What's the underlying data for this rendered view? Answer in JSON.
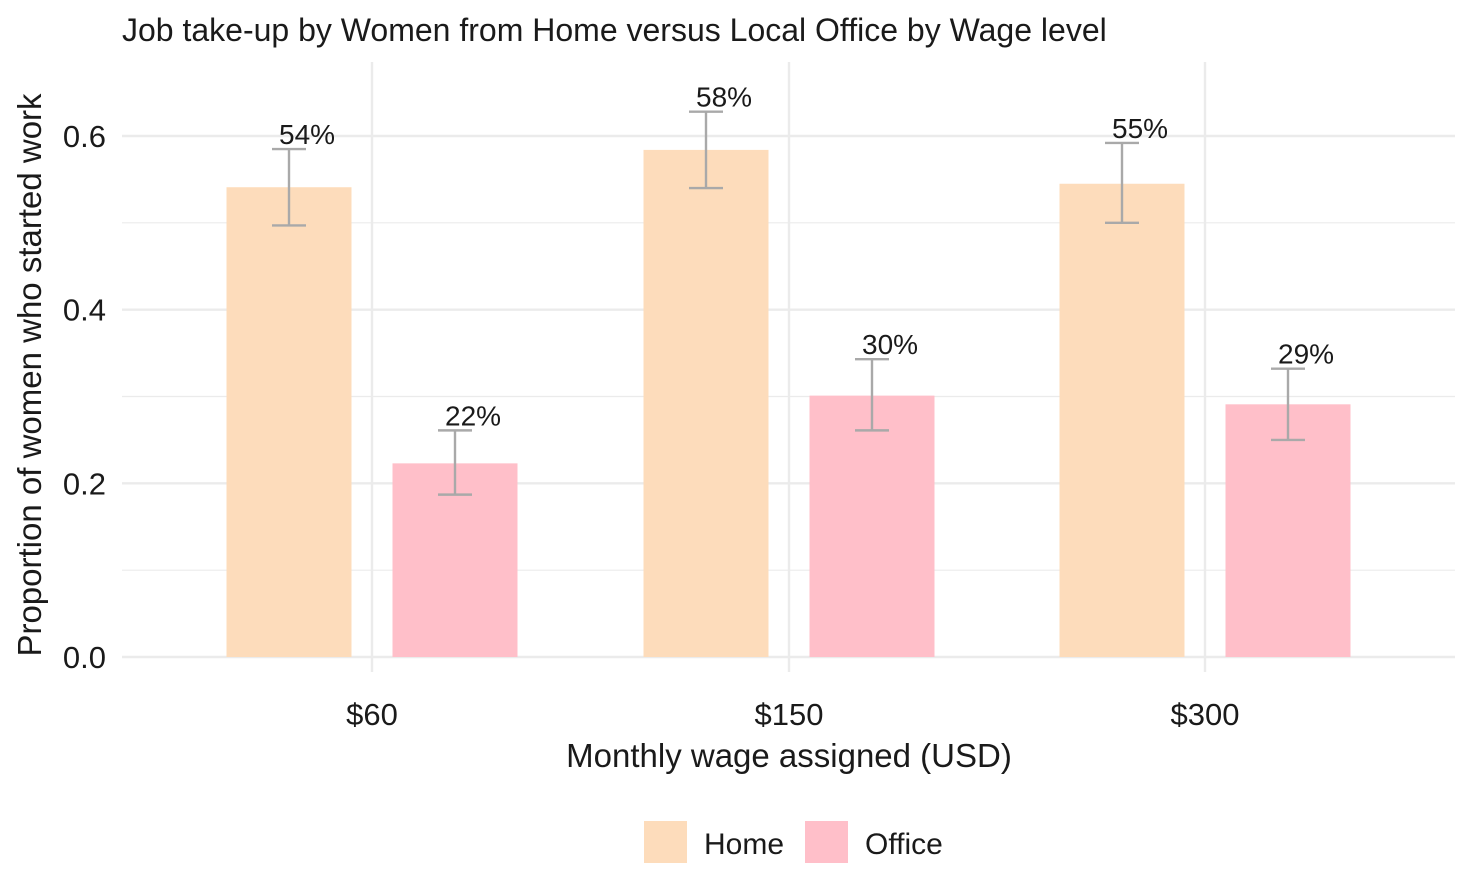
{
  "chart_data": {
    "type": "bar",
    "title": "Job take-up by Women from Home versus Local Office by Wage level",
    "xlabel": "Monthly wage assigned (USD)",
    "ylabel": "Proportion of women who started work",
    "categories": [
      "$60",
      "$150",
      "$300"
    ],
    "ylim": [
      0,
      0.68
    ],
    "y_ticks": [
      0.0,
      0.2,
      0.4,
      0.6
    ],
    "y_tick_labels": [
      "0.0",
      "0.2",
      "0.4",
      "0.6"
    ],
    "grid": true,
    "legend_position": "bottom",
    "series": [
      {
        "name": "Home",
        "color": "#FDDCBB",
        "values": [
          0.541,
          0.584,
          0.545
        ],
        "error_low": [
          0.497,
          0.54,
          0.5
        ],
        "error_high": [
          0.585,
          0.628,
          0.592
        ],
        "labels": [
          "54%",
          "58%",
          "55%"
        ]
      },
      {
        "name": "Office",
        "color": "#FFBFC9",
        "values": [
          0.223,
          0.301,
          0.291
        ],
        "error_low": [
          0.187,
          0.261,
          0.25
        ],
        "error_high": [
          0.261,
          0.343,
          0.332
        ],
        "labels": [
          "22%",
          "30%",
          "29%"
        ]
      }
    ],
    "error_bar_color": "#A9A9A9",
    "grid_color": "#EBEBEB"
  }
}
